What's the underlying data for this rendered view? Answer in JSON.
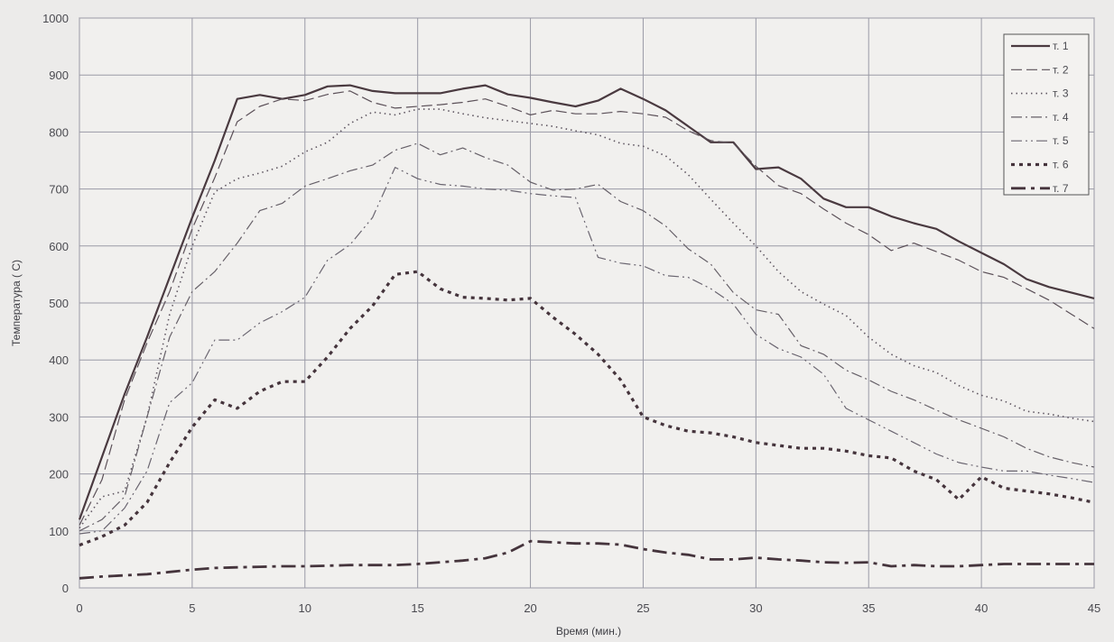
{
  "chart_data": {
    "type": "line",
    "title": "",
    "xlabel": "Время (мин.)",
    "ylabel": "Температура ( С)",
    "xlim": [
      0,
      45
    ],
    "ylim": [
      0,
      1000
    ],
    "xticks": [
      0,
      5,
      10,
      15,
      20,
      25,
      30,
      35,
      40,
      45
    ],
    "yticks": [
      0,
      100,
      200,
      300,
      400,
      500,
      600,
      700,
      800,
      900,
      1000
    ],
    "grid": true,
    "legend_position": "top-right",
    "series": [
      {
        "name": "т. 1",
        "color": "#4a3a40",
        "dash": "solid",
        "x": [
          0,
          1,
          2,
          3,
          4,
          5,
          6,
          7,
          8,
          9,
          10,
          11,
          12,
          13,
          14,
          15,
          16,
          17,
          18,
          19,
          20,
          21,
          22,
          23,
          24,
          25,
          26,
          27,
          28,
          29,
          30,
          31,
          32,
          33,
          34,
          35,
          36,
          37,
          38,
          39,
          40,
          41,
          42,
          43,
          44,
          45
        ],
        "y": [
          120,
          230,
          340,
          440,
          545,
          650,
          750,
          858,
          865,
          858,
          865,
          880,
          882,
          872,
          868,
          868,
          868,
          876,
          882,
          866,
          860,
          852,
          845,
          855,
          876,
          858,
          838,
          810,
          782,
          782,
          735,
          738,
          718,
          683,
          668,
          668,
          652,
          640,
          630,
          608,
          588,
          568,
          542,
          528,
          518,
          508
        ]
      },
      {
        "name": "т. 2",
        "color": "#5b5058",
        "dash": "long-dash",
        "x": [
          0,
          1,
          2,
          3,
          4,
          5,
          6,
          7,
          8,
          9,
          10,
          11,
          12,
          13,
          14,
          15,
          16,
          17,
          18,
          19,
          20,
          21,
          22,
          23,
          24,
          25,
          26,
          27,
          28,
          29,
          30,
          31,
          32,
          33,
          34,
          35,
          36,
          37,
          38,
          39,
          40,
          41,
          42,
          43,
          44,
          45
        ],
        "y": [
          110,
          190,
          330,
          430,
          520,
          630,
          720,
          818,
          845,
          858,
          855,
          866,
          872,
          852,
          842,
          845,
          848,
          852,
          858,
          845,
          830,
          838,
          832,
          832,
          836,
          832,
          826,
          802,
          785,
          780,
          740,
          706,
          692,
          665,
          640,
          620,
          592,
          605,
          590,
          575,
          555,
          545,
          525,
          505,
          480,
          455
        ]
      },
      {
        "name": "т. 3",
        "color": "#5e5560",
        "dash": "dotted",
        "x": [
          0,
          1,
          2,
          3,
          4,
          5,
          6,
          7,
          8,
          9,
          10,
          11,
          12,
          13,
          14,
          15,
          16,
          17,
          18,
          19,
          20,
          21,
          22,
          23,
          24,
          25,
          26,
          27,
          28,
          29,
          30,
          31,
          32,
          33,
          34,
          35,
          36,
          37,
          38,
          39,
          40,
          41,
          42,
          43,
          44,
          45
        ],
        "y": [
          105,
          160,
          170,
          300,
          480,
          600,
          695,
          718,
          728,
          740,
          765,
          782,
          815,
          835,
          830,
          840,
          840,
          832,
          825,
          820,
          815,
          810,
          802,
          795,
          780,
          775,
          758,
          725,
          682,
          640,
          600,
          555,
          520,
          498,
          478,
          440,
          410,
          390,
          378,
          355,
          338,
          328,
          310,
          305,
          298,
          292
        ]
      },
      {
        "name": "т. 4",
        "color": "#666068",
        "dash": "dash-dot",
        "x": [
          0,
          1,
          2,
          3,
          4,
          5,
          6,
          7,
          8,
          9,
          10,
          11,
          12,
          13,
          14,
          15,
          16,
          17,
          18,
          19,
          20,
          21,
          22,
          23,
          24,
          25,
          26,
          27,
          28,
          29,
          30,
          31,
          32,
          33,
          34,
          35,
          36,
          37,
          38,
          39,
          40,
          41,
          42,
          43,
          44,
          45
        ],
        "y": [
          100,
          120,
          160,
          300,
          440,
          520,
          555,
          605,
          662,
          675,
          705,
          718,
          732,
          742,
          768,
          780,
          760,
          772,
          755,
          742,
          712,
          698,
          700,
          708,
          678,
          662,
          635,
          595,
          568,
          518,
          488,
          480,
          425,
          410,
          382,
          365,
          345,
          330,
          312,
          295,
          280,
          265,
          245,
          230,
          220,
          212
        ]
      },
      {
        "name": "т. 5",
        "color": "#6a6570",
        "dash": "dash-dot-dot",
        "x": [
          0,
          1,
          2,
          3,
          4,
          5,
          6,
          7,
          8,
          9,
          10,
          11,
          12,
          13,
          14,
          15,
          16,
          17,
          18,
          19,
          20,
          21,
          22,
          23,
          24,
          25,
          26,
          27,
          28,
          29,
          30,
          31,
          32,
          33,
          34,
          35,
          36,
          37,
          38,
          39,
          40,
          41,
          42,
          43,
          44,
          45
        ],
        "y": [
          95,
          100,
          140,
          205,
          325,
          360,
          435,
          435,
          465,
          485,
          510,
          575,
          602,
          650,
          738,
          718,
          708,
          705,
          700,
          698,
          692,
          688,
          685,
          580,
          570,
          565,
          548,
          545,
          525,
          498,
          445,
          420,
          405,
          375,
          315,
          295,
          275,
          255,
          235,
          220,
          212,
          205,
          205,
          198,
          192,
          185
        ]
      },
      {
        "name": "т. 6",
        "color": "#45343c",
        "dash": "heavy-dotted",
        "x": [
          0,
          1,
          2,
          3,
          4,
          5,
          6,
          7,
          8,
          9,
          10,
          11,
          12,
          13,
          14,
          15,
          16,
          17,
          18,
          19,
          20,
          21,
          22,
          23,
          24,
          25,
          26,
          27,
          28,
          29,
          30,
          31,
          32,
          33,
          34,
          35,
          36,
          37,
          38,
          39,
          40,
          41,
          42,
          43,
          44,
          45
        ],
        "y": [
          75,
          90,
          110,
          150,
          220,
          282,
          330,
          315,
          345,
          362,
          362,
          405,
          455,
          495,
          550,
          555,
          525,
          510,
          508,
          505,
          508,
          475,
          445,
          410,
          365,
          300,
          285,
          275,
          272,
          265,
          255,
          250,
          245,
          245,
          240,
          232,
          228,
          205,
          190,
          155,
          195,
          175,
          170,
          165,
          158,
          150
        ]
      },
      {
        "name": "т. 7",
        "color": "#45343c",
        "dash": "long-dash-dot",
        "x": [
          0,
          1,
          2,
          3,
          4,
          5,
          6,
          7,
          8,
          9,
          10,
          11,
          12,
          13,
          14,
          15,
          16,
          17,
          18,
          19,
          20,
          21,
          22,
          23,
          24,
          25,
          26,
          27,
          28,
          29,
          30,
          31,
          32,
          33,
          34,
          35,
          36,
          37,
          38,
          39,
          40,
          41,
          42,
          43,
          44,
          45
        ],
        "y": [
          17,
          20,
          22,
          24,
          28,
          32,
          35,
          36,
          37,
          38,
          38,
          39,
          40,
          40,
          40,
          42,
          45,
          48,
          52,
          62,
          82,
          80,
          78,
          78,
          76,
          68,
          62,
          58,
          50,
          50,
          53,
          50,
          48,
          45,
          44,
          45,
          38,
          40,
          38,
          38,
          40,
          42,
          42,
          42,
          42,
          42
        ]
      }
    ]
  }
}
